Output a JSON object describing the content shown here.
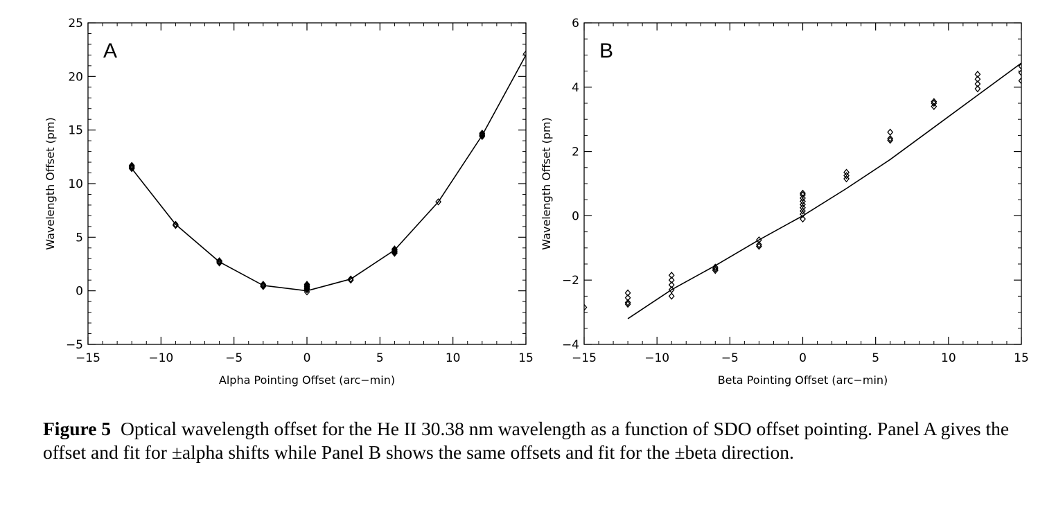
{
  "chart_data": [
    {
      "type": "scatter",
      "panel_label": "A",
      "xlabel": "Alpha Pointing Offset (arc−min)",
      "ylabel": "Wavelength Offset (pm)",
      "xlim": [
        -15,
        15
      ],
      "ylim": [
        -5,
        25
      ],
      "x_ticks": [
        -15,
        -10,
        -5,
        0,
        5,
        10,
        15
      ],
      "x_tick_labels": [
        "−15",
        "−10",
        "−5",
        "0",
        "5",
        "10",
        "15"
      ],
      "y_ticks": [
        -5,
        0,
        5,
        10,
        15,
        20,
        25
      ],
      "y_tick_labels": [
        "−5",
        "0",
        "5",
        "10",
        "15",
        "20",
        "25"
      ],
      "grid": false,
      "series": [
        {
          "marker": "diamond",
          "points": [
            [
              -12,
              11.4
            ],
            [
              -12,
              11.5
            ],
            [
              -12,
              11.6
            ],
            [
              -12,
              11.7
            ],
            [
              -9,
              6.1
            ],
            [
              -9,
              6.2
            ],
            [
              -6,
              2.6
            ],
            [
              -6,
              2.7
            ],
            [
              -6,
              2.8
            ],
            [
              -3,
              0.4
            ],
            [
              -3,
              0.5
            ],
            [
              -3,
              0.6
            ],
            [
              0,
              -0.1
            ],
            [
              0,
              0.1
            ],
            [
              0,
              0.2
            ],
            [
              0,
              0.3
            ],
            [
              0,
              0.4
            ],
            [
              0,
              0.5
            ],
            [
              0,
              0.6
            ],
            [
              3,
              1.0
            ],
            [
              3,
              1.1
            ],
            [
              6,
              3.5
            ],
            [
              6,
              3.6
            ],
            [
              6,
              3.7
            ],
            [
              6,
              3.8
            ],
            [
              6,
              3.9
            ],
            [
              9,
              8.3
            ],
            [
              12,
              14.4
            ],
            [
              12,
              14.5
            ],
            [
              12,
              14.6
            ],
            [
              12,
              14.7
            ],
            [
              15,
              22.1
            ]
          ]
        },
        {
          "marker": "line",
          "points": [
            [
              -12,
              11.4
            ],
            [
              -9,
              6.2
            ],
            [
              -6,
              2.7
            ],
            [
              -3,
              0.5
            ],
            [
              0,
              0.0
            ],
            [
              3,
              1.1
            ],
            [
              6,
              3.8
            ],
            [
              9,
              8.3
            ],
            [
              12,
              14.5
            ],
            [
              15,
              22.0
            ]
          ]
        }
      ]
    },
    {
      "type": "scatter",
      "panel_label": "B",
      "xlabel": "Beta Pointing Offset (arc−min)",
      "ylabel": "Wavelength Offset (pm)",
      "xlim": [
        -15,
        15
      ],
      "ylim": [
        -4,
        6
      ],
      "x_ticks": [
        -15,
        -10,
        -5,
        0,
        5,
        10,
        15
      ],
      "x_tick_labels": [
        "−15",
        "−10",
        "−5",
        "0",
        "5",
        "10",
        "15"
      ],
      "y_ticks": [
        -4,
        -2,
        0,
        2,
        4,
        6
      ],
      "y_tick_labels": [
        "−4",
        "−2",
        "0",
        "2",
        "4",
        "6"
      ],
      "grid": false,
      "series": [
        {
          "marker": "diamond",
          "points": [
            [
              -15,
              -2.85
            ],
            [
              -12,
              -2.4
            ],
            [
              -12,
              -2.55
            ],
            [
              -12,
              -2.7
            ],
            [
              -12,
              -2.75
            ],
            [
              -9,
              -1.85
            ],
            [
              -9,
              -2.0
            ],
            [
              -9,
              -2.15
            ],
            [
              -9,
              -2.3
            ],
            [
              -9,
              -2.5
            ],
            [
              -6,
              -1.6
            ],
            [
              -6,
              -1.65
            ],
            [
              -6,
              -1.7
            ],
            [
              -3,
              -0.75
            ],
            [
              -3,
              -0.9
            ],
            [
              -3,
              -0.95
            ],
            [
              0,
              -0.1
            ],
            [
              0,
              0.05
            ],
            [
              0,
              0.15
            ],
            [
              0,
              0.25
            ],
            [
              0,
              0.35
            ],
            [
              0,
              0.45
            ],
            [
              0,
              0.55
            ],
            [
              0,
              0.65
            ],
            [
              0,
              0.7
            ],
            [
              3,
              1.15
            ],
            [
              3,
              1.25
            ],
            [
              3,
              1.35
            ],
            [
              6,
              2.35
            ],
            [
              6,
              2.4
            ],
            [
              6,
              2.6
            ],
            [
              9,
              3.4
            ],
            [
              9,
              3.5
            ],
            [
              9,
              3.55
            ],
            [
              12,
              3.95
            ],
            [
              12,
              4.1
            ],
            [
              12,
              4.25
            ],
            [
              12,
              4.4
            ],
            [
              15,
              4.2
            ],
            [
              15,
              4.45
            ],
            [
              15,
              4.65
            ]
          ]
        },
        {
          "marker": "line",
          "points": [
            [
              -12,
              -3.2
            ],
            [
              -9,
              -2.3
            ],
            [
              -6,
              -1.55
            ],
            [
              -3,
              -0.75
            ],
            [
              0,
              0.0
            ],
            [
              3,
              0.85
            ],
            [
              6,
              1.75
            ],
            [
              9,
              2.75
            ],
            [
              12,
              3.75
            ],
            [
              15,
              4.75
            ]
          ]
        }
      ]
    }
  ],
  "caption": {
    "figure_number": "Figure 5",
    "text_part1": "Optical wavelength offset for the He ",
    "ion_stage": "II",
    "text_part2": " 30.38 nm wavelength as a function of SDO offset pointing. Panel A gives the offset and fit for ±alpha shifts while Panel B shows the same offsets and fit for the ±beta direction."
  }
}
